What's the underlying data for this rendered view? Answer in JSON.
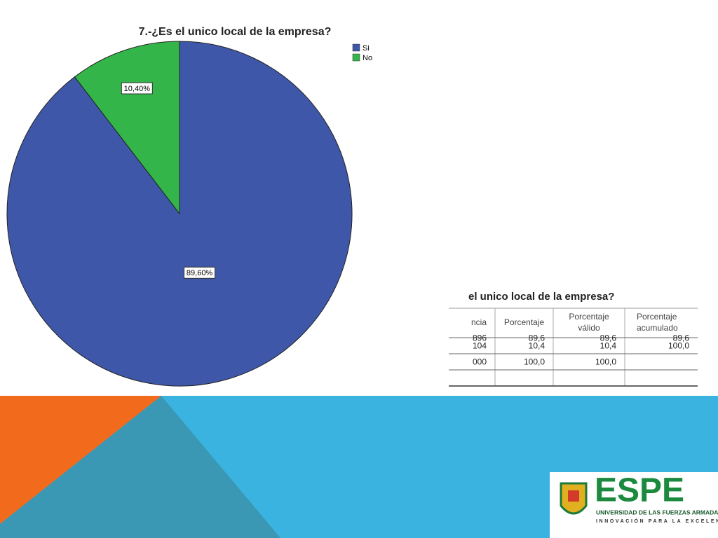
{
  "chart_data": {
    "type": "pie",
    "title": "7.-¿Es el unico local de la empresa?",
    "categories": [
      "Si",
      "No"
    ],
    "values": [
      89.6,
      10.4
    ],
    "value_labels": [
      "89,60%",
      "10,40%"
    ],
    "colors": [
      "#3f57a8",
      "#33b54a"
    ],
    "legend": "top-right"
  },
  "table": {
    "title": "el unico local de la empresa?",
    "header": [
      [
        "ncia"
      ],
      [
        "Porcentaje"
      ],
      [
        "Porcentaje",
        "válido"
      ],
      [
        "Porcentaje",
        "acumulado"
      ]
    ],
    "rows": [
      [
        "896",
        "89,6",
        "89,6",
        "89,6"
      ],
      [
        "104",
        "10,4",
        "10,4",
        "100,0"
      ],
      [
        "000",
        "100,0",
        "100,0"
      ]
    ]
  },
  "logo": {
    "name": "ESPE",
    "line1": "UNIVERSIDAD DE LAS FUERZAS ARMADAS",
    "line2": "INNOVACIÓN PARA LA EXCELENCIA"
  }
}
